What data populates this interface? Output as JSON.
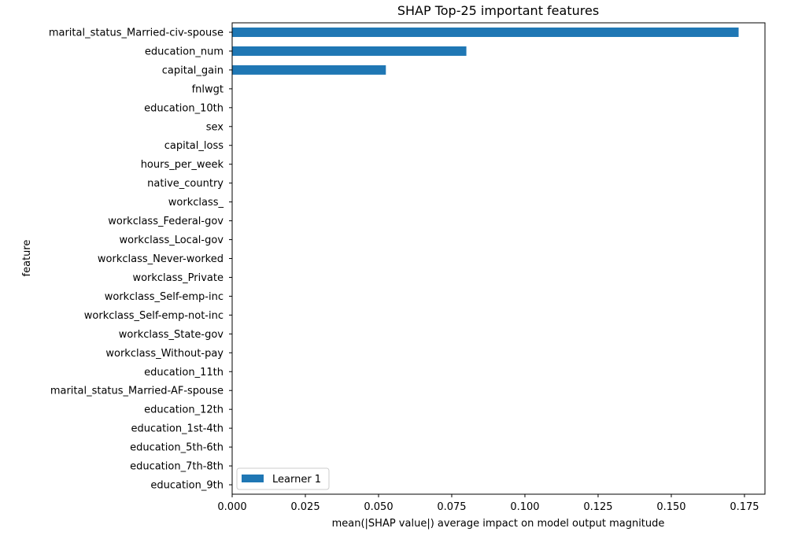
{
  "chart_data": {
    "type": "bar",
    "orientation": "horizontal",
    "title": "SHAP Top-25 important features",
    "xlabel": "mean(|SHAP value|) average impact on model output magnitude",
    "ylabel": "feature",
    "xlim": [
      0,
      0.182
    ],
    "x_ticks": [
      0.0,
      0.025,
      0.05,
      0.075,
      0.1,
      0.125,
      0.15,
      0.175
    ],
    "x_tick_labels": [
      "0.000",
      "0.025",
      "0.050",
      "0.075",
      "0.100",
      "0.125",
      "0.150",
      "0.175"
    ],
    "grid": false,
    "legend_position": "lower-left",
    "categories": [
      "marital_status_Married-civ-spouse",
      "education_num",
      "capital_gain",
      "fnlwgt",
      "education_10th",
      "sex",
      "capital_loss",
      "hours_per_week",
      "native_country",
      "workclass_",
      "workclass_Federal-gov",
      "workclass_Local-gov",
      "workclass_Never-worked",
      "workclass_Private",
      "workclass_Self-emp-inc",
      "workclass_Self-emp-not-inc",
      "workclass_State-gov",
      "workclass_Without-pay",
      "education_11th",
      "marital_status_Married-AF-spouse",
      "education_12th",
      "education_1st-4th",
      "education_5th-6th",
      "education_7th-8th",
      "education_9th"
    ],
    "series": [
      {
        "name": "Learner 1",
        "color": "#1f77b4",
        "values": [
          0.173,
          0.08,
          0.0525,
          0,
          0,
          0,
          0,
          0,
          0,
          0,
          0,
          0,
          0,
          0,
          0,
          0,
          0,
          0,
          0,
          0,
          0,
          0,
          0,
          0,
          0
        ]
      }
    ]
  }
}
